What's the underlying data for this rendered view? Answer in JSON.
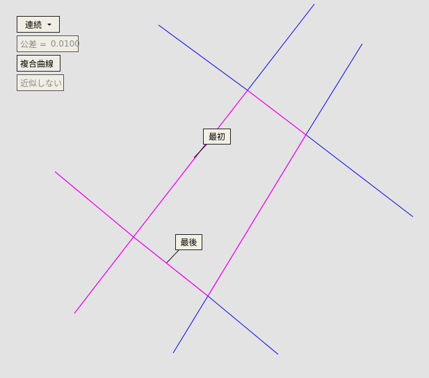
{
  "controls": {
    "mode_dropdown": "連続",
    "tolerance_label": "公差 =",
    "tolerance_value": "0.0100",
    "composite_button": "複合曲線",
    "approx_button": "近似しない"
  },
  "annotations": {
    "first": "最初",
    "last": "最後"
  },
  "colors": {
    "background": "#e3e3e3",
    "input_line": "#0000ee",
    "chain_line": "#ee00ee",
    "leader_line": "#111111"
  }
}
